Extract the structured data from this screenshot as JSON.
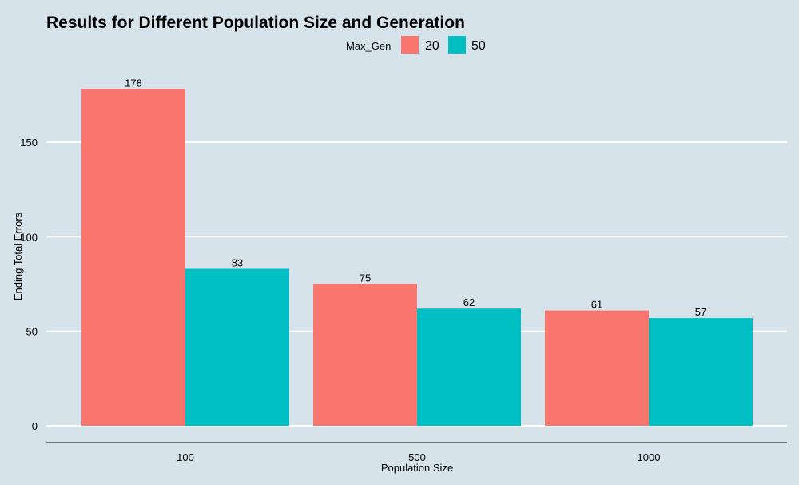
{
  "chart_data": {
    "type": "bar",
    "title": "Results for Different Population Size and Generation",
    "xlabel": "Population Size",
    "ylabel": "Ending Total Errors",
    "categories": [
      "100",
      "500",
      "1000"
    ],
    "legend_title": "Max_Gen",
    "legend_position": "top",
    "series": [
      {
        "name": "20",
        "color": "#F8766D",
        "values": [
          178,
          75,
          61
        ]
      },
      {
        "name": "50",
        "color": "#00BFC4",
        "values": [
          83,
          62,
          57
        ]
      }
    ],
    "ylim": [
      0,
      190
    ],
    "yticks": [
      0,
      50,
      100,
      150
    ],
    "grid": true
  }
}
